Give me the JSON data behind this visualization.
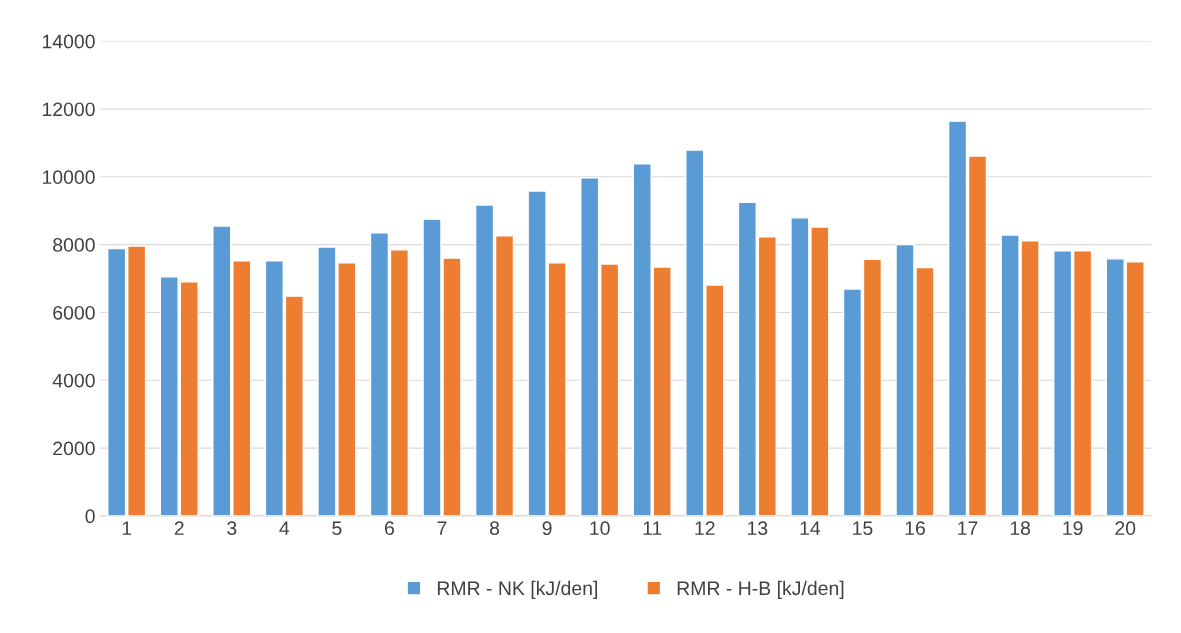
{
  "chart_data": {
    "type": "bar",
    "categories": [
      "1",
      "2",
      "3",
      "4",
      "5",
      "6",
      "7",
      "8",
      "9",
      "10",
      "11",
      "12",
      "13",
      "14",
      "15",
      "16",
      "17",
      "18",
      "19",
      "20"
    ],
    "series": [
      {
        "name": "RMR - NK [kJ/den]",
        "color": "#5b9bd5",
        "values": [
          7880,
          7050,
          8550,
          7520,
          7930,
          8350,
          8750,
          9170,
          9580,
          9970,
          10380,
          10790,
          9250,
          8790,
          6690,
          8000,
          11640,
          8280,
          7820,
          7580
        ]
      },
      {
        "name": "RMR - H-B [kJ/den]",
        "color": "#ed7d31",
        "values": [
          7960,
          6900,
          7520,
          6480,
          7460,
          7850,
          7600,
          8260,
          7460,
          7430,
          7340,
          6810,
          8230,
          8520,
          7570,
          7320,
          10610,
          8110,
          7820,
          7490
        ]
      }
    ],
    "ylim": [
      0,
      14000
    ],
    "yticks": [
      0,
      2000,
      4000,
      6000,
      8000,
      10000,
      12000,
      14000
    ],
    "grid": "y",
    "legend": "bottom"
  }
}
